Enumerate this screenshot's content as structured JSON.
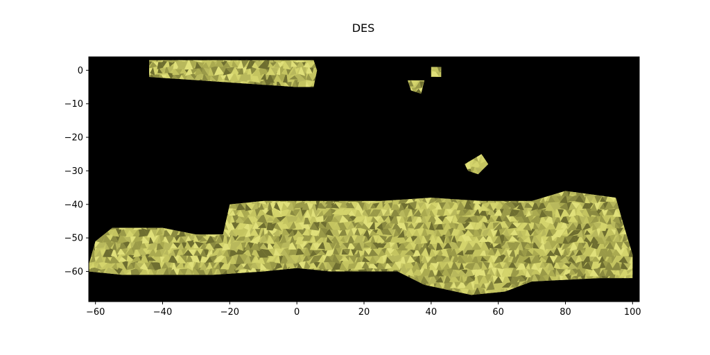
{
  "chart_data": {
    "type": "scatter",
    "title": "DES",
    "xlabel": "",
    "ylabel": "",
    "xlim": [
      -62,
      102
    ],
    "ylim": [
      -69,
      4
    ],
    "xticks": [
      -60,
      -40,
      -20,
      0,
      20,
      40,
      60,
      80,
      100
    ],
    "yticks": [
      0,
      -10,
      -20,
      -30,
      -40,
      -50,
      -60
    ],
    "xtick_labels": [
      "−60",
      "−40",
      "−20",
      "0",
      "20",
      "40",
      "60",
      "80",
      "100"
    ],
    "ytick_labels": [
      "0",
      "−10",
      "−20",
      "−30",
      "−40",
      "−50",
      "−60"
    ],
    "grid": false,
    "legend": "none",
    "background_color": "#000000",
    "face_color": "#c8c864",
    "regions": [
      {
        "name": "",
        "polygon": [
          [
            -44,
            3
          ],
          [
            5,
            3
          ],
          [
            6,
            0
          ],
          [
            5,
            -5
          ],
          [
            0,
            -5
          ],
          [
            -44,
            -2
          ]
        ]
      },
      {
        "name": "",
        "polygon": [
          [
            33,
            -3
          ],
          [
            38,
            -3
          ],
          [
            37,
            -7
          ],
          [
            34,
            -6
          ]
        ]
      },
      {
        "name": "",
        "polygon": [
          [
            40,
            1
          ],
          [
            43,
            1
          ],
          [
            43,
            -2
          ],
          [
            40,
            -2
          ]
        ]
      },
      {
        "name": "",
        "polygon": [
          [
            50,
            -28
          ],
          [
            55,
            -25
          ],
          [
            57,
            -28
          ],
          [
            54,
            -31
          ],
          [
            51,
            -30
          ]
        ]
      },
      {
        "name": "",
        "polygon": [
          [
            -62,
            -58
          ],
          [
            -60,
            -51
          ],
          [
            -55,
            -47
          ],
          [
            -40,
            -47
          ],
          [
            -30,
            -49
          ],
          [
            -22,
            -49
          ],
          [
            -20,
            -40
          ],
          [
            -10,
            -39
          ],
          [
            10,
            -39
          ],
          [
            25,
            -39
          ],
          [
            40,
            -38
          ],
          [
            55,
            -39
          ],
          [
            70,
            -39
          ],
          [
            80,
            -36
          ],
          [
            95,
            -38
          ],
          [
            97,
            -45
          ],
          [
            100,
            -55
          ],
          [
            100,
            -62
          ],
          [
            90,
            -62
          ],
          [
            70,
            -63
          ],
          [
            62,
            -66
          ],
          [
            52,
            -67
          ],
          [
            38,
            -64
          ],
          [
            30,
            -60
          ],
          [
            10,
            -60
          ],
          [
            0,
            -59
          ],
          [
            -10,
            -60
          ],
          [
            -25,
            -61
          ],
          [
            -40,
            -61
          ],
          [
            -52,
            -61
          ],
          [
            -62,
            -60
          ]
        ]
      }
    ]
  }
}
